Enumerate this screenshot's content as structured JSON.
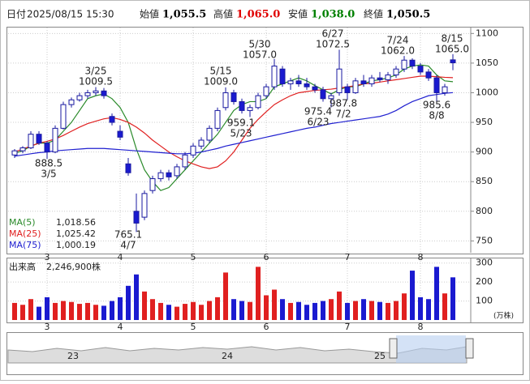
{
  "header": {
    "date_label": "日付",
    "date": "2025/08/15 15:30",
    "items": [
      {
        "label": "始値",
        "value": "1,055.5",
        "color": "#000000"
      },
      {
        "label": "高値",
        "value": "1,065.0",
        "color": "#e00000"
      },
      {
        "label": "安値",
        "value": "1,038.0",
        "color": "#008000"
      },
      {
        "label": "終値",
        "value": "1,050.5",
        "color": "#000000"
      }
    ]
  },
  "chart_data": {
    "type": "candlestick",
    "categories": [
      null,
      null,
      null,
      null,
      "3",
      null,
      null,
      null,
      null,
      null,
      null,
      null,
      null,
      "4",
      null,
      null,
      null,
      null,
      null,
      null,
      null,
      null,
      "5",
      null,
      null,
      null,
      null,
      null,
      null,
      null,
      null,
      "6",
      null,
      null,
      null,
      null,
      null,
      null,
      null,
      null,
      null,
      "7",
      null,
      null,
      null,
      null,
      null,
      null,
      null,
      null,
      "8",
      null,
      null,
      null,
      null
    ],
    "open": [
      895,
      902,
      907,
      930,
      915,
      900,
      940,
      980,
      988,
      995,
      1000,
      1003,
      960,
      935,
      880,
      800,
      790,
      835,
      855,
      865,
      860,
      875,
      895,
      910,
      920,
      940,
      975,
      1000,
      985,
      970,
      975,
      995,
      1010,
      1040,
      1015,
      1020,
      1015,
      1010,
      1005,
      990,
      1000,
      1010,
      1000,
      1020,
      1015,
      1025,
      1022,
      1030,
      1040,
      1055,
      1045,
      1035,
      1025,
      1000,
      1055.5
    ],
    "high": [
      905,
      910,
      935,
      935,
      918,
      945,
      985,
      992,
      1000,
      1005,
      1009.5,
      1008,
      965,
      945,
      890,
      830,
      835,
      860,
      870,
      870,
      880,
      900,
      915,
      925,
      945,
      975,
      1009,
      1005,
      990,
      980,
      1000,
      1015,
      1057,
      1045,
      1025,
      1030,
      1025,
      1015,
      1010,
      1000,
      1072.5,
      1015,
      1025,
      1030,
      1030,
      1035,
      1035,
      1045,
      1062,
      1058,
      1050,
      1040,
      1030,
      1015,
      1065
    ],
    "low": [
      890,
      898,
      905,
      912,
      888.5,
      898,
      938,
      975,
      985,
      990,
      995,
      990,
      945,
      920,
      860,
      765.1,
      785,
      830,
      850,
      852,
      855,
      870,
      890,
      905,
      915,
      935,
      970,
      980,
      965,
      959.1,
      972,
      990,
      1005,
      1010,
      1005,
      1010,
      1005,
      1000,
      985,
      975.4,
      995,
      987.8,
      998,
      1010,
      1010,
      1018,
      1015,
      1025,
      1035,
      1040,
      1030,
      1020,
      985.6,
      995,
      1038
    ],
    "close": [
      902,
      907,
      930,
      915,
      900,
      940,
      980,
      988,
      995,
      1000,
      1003,
      995,
      950,
      925,
      865,
      780,
      830,
      855,
      865,
      858,
      875,
      895,
      910,
      920,
      940,
      970,
      1000,
      985,
      970,
      975,
      995,
      1010,
      1045,
      1015,
      1020,
      1015,
      1010,
      1005,
      990,
      995,
      1040,
      1000,
      1020,
      1015,
      1025,
      1022,
      1030,
      1040,
      1055,
      1045,
      1035,
      1025,
      1000,
      1010,
      1050.5
    ],
    "colors": {
      "up_fill": "#ffffff",
      "up_stroke": "#1a1aa0",
      "down_fill": "#1a1ad0",
      "down_stroke": "#1a1aa0",
      "vol_up": "#e02020",
      "vol_down": "#1a1ad0"
    },
    "ylim": [
      730,
      1110
    ],
    "yticks": [
      750,
      800,
      850,
      900,
      950,
      1000,
      1050,
      1100
    ],
    "grid": true,
    "series": [
      {
        "name": "MA(5)",
        "color": "#2a8a2a",
        "legend_value": "1,018.56",
        "values": [
          898,
          902,
          910,
          915,
          915,
          920,
          935,
          950,
          970,
          990,
          995,
          998,
          990,
          975,
          950,
          905,
          870,
          850,
          835,
          840,
          855,
          870,
          885,
          900,
          915,
          930,
          950,
          970,
          980,
          985,
          985,
          990,
          1010,
          1015,
          1020,
          1025,
          1020,
          1012,
          1005,
          998,
          1005,
          1010,
          1010,
          1015,
          1020,
          1022,
          1025,
          1030,
          1040,
          1045,
          1047,
          1045,
          1030,
          1020,
          1018.56
        ]
      },
      {
        "name": "MA(25)",
        "color": "#e02020",
        "legend_value": "1,025.42",
        "values": [
          900,
          905,
          910,
          915,
          918,
          922,
          928,
          935,
          942,
          948,
          952,
          956,
          958,
          955,
          950,
          942,
          932,
          920,
          910,
          900,
          892,
          885,
          880,
          875,
          872,
          875,
          885,
          900,
          920,
          940,
          955,
          968,
          980,
          988,
          995,
          1000,
          1002,
          1004,
          1005,
          1006,
          1008,
          1010,
          1012,
          1015,
          1016,
          1018,
          1020,
          1022,
          1024,
          1026,
          1028,
          1028,
          1027,
          1026,
          1025.42
        ]
      },
      {
        "name": "MA(75)",
        "color": "#2020d0",
        "legend_value": "1,000.19",
        "values": [
          893,
          895,
          897,
          899,
          900,
          902,
          903,
          904,
          905,
          906,
          906,
          906,
          905,
          904,
          903,
          902,
          901,
          900,
          899,
          898,
          897,
          897,
          898,
          900,
          903,
          906,
          910,
          913,
          916,
          919,
          922,
          925,
          928,
          931,
          934,
          937,
          940,
          942,
          945,
          948,
          950,
          952,
          954,
          956,
          958,
          960,
          964,
          970,
          978,
          985,
          990,
          995,
          997,
          999,
          1000.19
        ]
      }
    ],
    "annotations": [
      [
        "3/25",
        "1009.5"
      ],
      [
        "888.5",
        "3/5"
      ],
      [
        "765.1",
        "4/7"
      ],
      [
        "5/15",
        "1009.0"
      ],
      [
        "959.1",
        "5/23"
      ],
      [
        "5/30",
        "1057.0"
      ],
      [
        "975.4",
        "6/23"
      ],
      [
        "6/27",
        "1072.5"
      ],
      [
        "987.8",
        "7/2"
      ],
      [
        "7/24",
        "1062.0"
      ],
      [
        "985.6",
        "8/8"
      ],
      [
        "8/15",
        "1065.0"
      ]
    ],
    "volume": {
      "title": "出来高",
      "total": "2,246,900株",
      "unit": "(万株)",
      "ylim": [
        0,
        320
      ],
      "yticks": [
        100,
        200,
        300
      ],
      "values": [
        90,
        80,
        110,
        70,
        120,
        90,
        100,
        95,
        85,
        90,
        80,
        75,
        100,
        120,
        180,
        240,
        150,
        110,
        90,
        80,
        70,
        85,
        95,
        80,
        100,
        120,
        250,
        110,
        100,
        95,
        280,
        130,
        160,
        110,
        90,
        95,
        80,
        90,
        100,
        110,
        150,
        90,
        100,
        110,
        100,
        95,
        90,
        100,
        140,
        260,
        120,
        110,
        280,
        140,
        224.69
      ]
    },
    "navigator": {
      "labels": [
        "23",
        "24",
        "25"
      ]
    }
  }
}
